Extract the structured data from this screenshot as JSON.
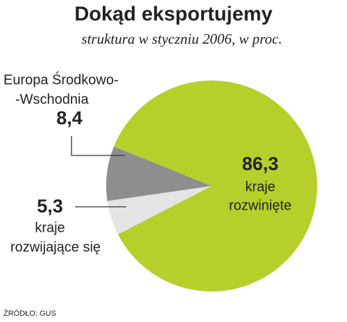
{
  "chart_data": {
    "type": "pie",
    "title": "Dokąd eksportujemy",
    "subtitle": "struktura w styczniu 2006, w proc.",
    "categories": [
      [
        "kraje",
        "rozwinięte"
      ],
      [
        "Europa Środkowo-",
        "-Wschodnia"
      ],
      [
        "kraje",
        "rozwijające się"
      ]
    ],
    "values": [
      86.3,
      8.4,
      5.3
    ],
    "value_labels": [
      "86,3",
      "8,4",
      "5,3"
    ],
    "colors": [
      "#b6cf2b",
      "#8e8e8e",
      "#e4e4e4"
    ],
    "source": "ŹRÓDŁO: GUS"
  }
}
